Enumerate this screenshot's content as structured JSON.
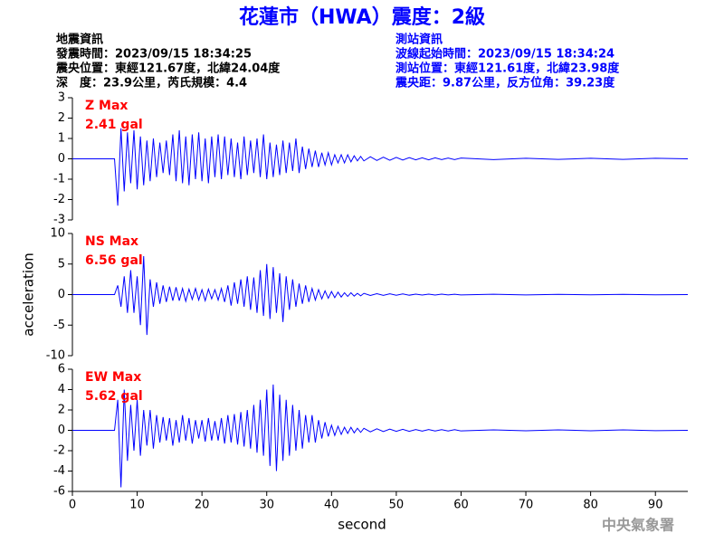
{
  "header": {
    "title": "花蓮市（HWA）震度：2級",
    "left": [
      "地震資訊",
      "發震時間：2023/09/15 18:34:25",
      "震央位置：東經121.67度，北緯24.04度",
      "深　度：23.9公里，芮氏規模：4.4"
    ],
    "right": [
      "測站資訊",
      "波線起始時間：2023/09/15 18:34:24",
      "測站位置：東經121.61度，北緯23.98度",
      "震央距：9.87公里，反方位角：39.23度"
    ],
    "footer": "中央氣象署"
  },
  "chart_data": [
    {
      "type": "line",
      "label": "Z Max",
      "max_label": "2.41 gal",
      "color": "#0000ff",
      "xlim": [
        0,
        95
      ],
      "ylim": [
        -3,
        3
      ],
      "yticks": [
        -3,
        -2,
        -1,
        0,
        1,
        2,
        3
      ],
      "x": [
        0,
        6.5,
        7,
        7.5,
        8,
        8.5,
        9,
        9.5,
        10,
        10.5,
        11,
        11.5,
        12,
        12.5,
        13,
        13.5,
        14,
        14.5,
        15,
        15.5,
        16,
        16.5,
        17,
        17.5,
        18,
        18.5,
        19,
        19.5,
        20,
        20.5,
        21,
        21.5,
        22,
        22.5,
        23,
        23.5,
        24,
        24.5,
        25,
        25.5,
        26,
        26.5,
        27,
        27.5,
        28,
        28.5,
        29,
        29.5,
        30,
        30.5,
        31,
        31.5,
        32,
        32.5,
        33,
        33.5,
        34,
        34.5,
        35,
        35.5,
        36,
        36.5,
        37,
        37.5,
        38,
        38.5,
        39,
        39.5,
        40,
        40.5,
        41,
        41.5,
        42,
        42.5,
        43,
        43.5,
        44,
        44.5,
        45,
        46,
        47,
        48,
        49,
        50,
        51,
        52,
        53,
        54,
        55,
        56,
        57,
        58,
        59,
        60,
        65,
        70,
        75,
        80,
        85,
        90,
        95
      ],
      "values": [
        0,
        0,
        -2.3,
        1.5,
        -1.6,
        1.3,
        -1.2,
        1.4,
        -1.5,
        1.1,
        -1.3,
        0.9,
        -1.1,
        1.0,
        -0.9,
        0.8,
        -0.7,
        0.9,
        -0.8,
        1.2,
        -1.1,
        1.4,
        -1.2,
        1.1,
        -1.3,
        1.2,
        -1.0,
        1.3,
        -1.1,
        1.0,
        -1.2,
        1.1,
        -0.9,
        1.2,
        -1.0,
        1.1,
        -0.8,
        1.0,
        -0.9,
        0.8,
        -1.0,
        1.1,
        -0.8,
        0.9,
        -0.7,
        1.0,
        -0.9,
        1.2,
        -1.0,
        0.8,
        -0.9,
        0.7,
        -0.8,
        0.9,
        -0.7,
        0.8,
        -0.6,
        1.0,
        -0.7,
        0.6,
        -0.5,
        0.5,
        -0.4,
        0.4,
        -0.4,
        0.3,
        -0.3,
        0.3,
        -0.3,
        0.2,
        -0.2,
        0.2,
        -0.2,
        0.2,
        -0.15,
        0.15,
        -0.1,
        0.12,
        -0.1,
        0.1,
        -0.08,
        0.08,
        -0.07,
        0.07,
        -0.06,
        0.06,
        -0.05,
        0.05,
        -0.05,
        0.05,
        -0.04,
        0.04,
        -0.04,
        0.04,
        -0.04,
        0.03,
        -0.03,
        0.03,
        -0.03,
        0.03,
        0
      ]
    },
    {
      "type": "line",
      "label": "NS Max",
      "max_label": "6.56 gal",
      "color": "#0000ff",
      "ylabel": "acceleration",
      "xlim": [
        0,
        95
      ],
      "ylim": [
        -10,
        10
      ],
      "yticks": [
        -10,
        -5,
        0,
        5,
        10
      ],
      "x": [
        0,
        6.5,
        7,
        7.5,
        8,
        8.5,
        9,
        9.5,
        10,
        10.5,
        11,
        11.5,
        12,
        12.5,
        13,
        13.5,
        14,
        14.5,
        15,
        15.5,
        16,
        16.5,
        17,
        17.5,
        18,
        18.5,
        19,
        19.5,
        20,
        20.5,
        21,
        21.5,
        22,
        22.5,
        23,
        23.5,
        24,
        24.5,
        25,
        25.5,
        26,
        26.5,
        27,
        27.5,
        28,
        28.5,
        29,
        29.5,
        30,
        30.5,
        31,
        31.5,
        32,
        32.5,
        33,
        33.5,
        34,
        34.5,
        35,
        35.5,
        36,
        36.5,
        37,
        37.5,
        38,
        38.5,
        39,
        39.5,
        40,
        40.5,
        41,
        41.5,
        42,
        42.5,
        43,
        43.5,
        44,
        44.5,
        45,
        46,
        47,
        48,
        49,
        50,
        51,
        52,
        53,
        54,
        55,
        56,
        57,
        58,
        59,
        60,
        65,
        70,
        75,
        80,
        85,
        90,
        95
      ],
      "values": [
        0,
        0,
        1.5,
        -2,
        3,
        -3,
        4,
        -3,
        3,
        -5,
        6.3,
        -6.6,
        2.5,
        -2,
        2,
        -1.5,
        1.5,
        -1.2,
        1.3,
        -1.0,
        1.2,
        -1.0,
        1.0,
        -1.1,
        0.9,
        -0.8,
        1.0,
        -0.9,
        0.8,
        -1.0,
        0.9,
        -0.7,
        0.8,
        -0.9,
        1.0,
        -1.2,
        1.5,
        -1.8,
        2.0,
        -1.5,
        2.5,
        -2.0,
        3.0,
        -2.5,
        2.8,
        -3.0,
        4.0,
        -3.5,
        5.0,
        -4.0,
        4.5,
        -3.0,
        3.5,
        -4.5,
        3.0,
        -2.5,
        2.5,
        -2.0,
        1.8,
        -1.5,
        1.5,
        -1.2,
        1.0,
        -0.9,
        0.8,
        -0.7,
        0.6,
        -0.6,
        0.5,
        -0.5,
        0.4,
        -0.4,
        0.3,
        -0.3,
        0.3,
        -0.25,
        0.2,
        -0.2,
        0.2,
        -0.15,
        0.15,
        -0.12,
        0.12,
        -0.1,
        0.1,
        -0.1,
        0.08,
        -0.08,
        0.08,
        -0.07,
        0.07,
        -0.06,
        0.06,
        -0.06,
        0.05,
        -0.05,
        0.04,
        -0.04,
        0.04,
        -0.03,
        0
      ]
    },
    {
      "type": "line",
      "label": "EW Max",
      "max_label": "5.62 gal",
      "color": "#0000ff",
      "xlabel": "second",
      "xlim": [
        0,
        95
      ],
      "ylim": [
        -6,
        6
      ],
      "yticks": [
        -6,
        -4,
        -2,
        0,
        2,
        4,
        6
      ],
      "xticks": [
        0,
        10,
        20,
        30,
        40,
        50,
        60,
        70,
        80,
        90
      ],
      "x": [
        0,
        6.5,
        7,
        7.5,
        8,
        8.5,
        9,
        9.5,
        10,
        10.5,
        11,
        11.5,
        12,
        12.5,
        13,
        13.5,
        14,
        14.5,
        15,
        15.5,
        16,
        16.5,
        17,
        17.5,
        18,
        18.5,
        19,
        19.5,
        20,
        20.5,
        21,
        21.5,
        22,
        22.5,
        23,
        23.5,
        24,
        24.5,
        25,
        25.5,
        26,
        26.5,
        27,
        27.5,
        28,
        28.5,
        29,
        29.5,
        30,
        30.5,
        31,
        31.5,
        32,
        32.5,
        33,
        33.5,
        34,
        34.5,
        35,
        35.5,
        36,
        36.5,
        37,
        37.5,
        38,
        38.5,
        39,
        39.5,
        40,
        40.5,
        41,
        41.5,
        42,
        42.5,
        43,
        43.5,
        44,
        44.5,
        45,
        46,
        47,
        48,
        49,
        50,
        51,
        52,
        53,
        54,
        55,
        56,
        57,
        58,
        59,
        60,
        65,
        70,
        75,
        80,
        85,
        90,
        95
      ],
      "values": [
        0,
        0,
        3,
        -5.6,
        4,
        -3,
        2.5,
        -2,
        3,
        -2.5,
        2,
        -1.5,
        2,
        -1.8,
        1.5,
        -1.2,
        1.3,
        -1.0,
        1.2,
        -1.5,
        1.0,
        -1.2,
        1.5,
        -1.0,
        1.2,
        -1.3,
        1.0,
        -0.8,
        1.0,
        -1.1,
        1.2,
        -1.0,
        0.9,
        -1.0,
        1.2,
        -1.3,
        1.5,
        -1.2,
        1.6,
        -1.4,
        1.8,
        -1.6,
        2.0,
        -1.8,
        2.5,
        -2.2,
        3.0,
        -2.5,
        4.0,
        -3.5,
        4.5,
        -4.0,
        3.5,
        -3.0,
        3.0,
        -2.5,
        2.5,
        -2.0,
        2.0,
        -1.8,
        1.5,
        -1.2,
        1.5,
        -1.2,
        1.0,
        -0.8,
        0.8,
        -0.6,
        0.5,
        -0.5,
        0.4,
        -0.4,
        0.3,
        -0.3,
        0.3,
        -0.25,
        0.2,
        -0.2,
        0.2,
        -0.15,
        0.15,
        -0.12,
        0.12,
        -0.1,
        0.1,
        -0.1,
        0.08,
        -0.08,
        0.08,
        -0.07,
        0.07,
        -0.06,
        0.06,
        -0.06,
        0.05,
        -0.05,
        0.04,
        -0.04,
        0.04,
        -0.03,
        0
      ]
    }
  ]
}
